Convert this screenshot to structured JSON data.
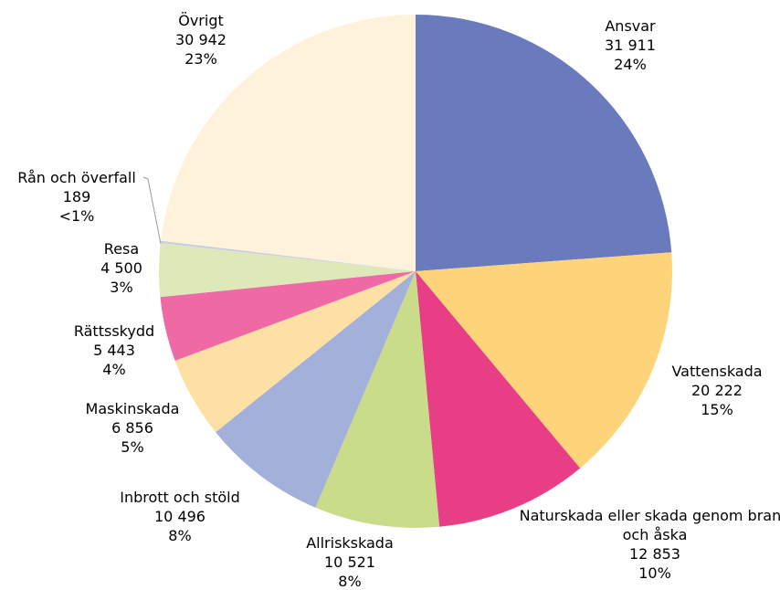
{
  "chart_data": {
    "type": "pie",
    "categories": [
      "Ansvar",
      "Vattenskada",
      "Naturskada eller skada genom brand och åska",
      "Allriskskada",
      "Inbrott och stöld",
      "Maskinskada",
      "Rättsskydd",
      "Resa",
      "Rån och överfall",
      "Övrigt"
    ],
    "values": [
      31911,
      20222,
      12853,
      10521,
      10496,
      6856,
      5443,
      4500,
      189,
      30942
    ],
    "value_labels": [
      "31 911",
      "20 222",
      "12 853",
      "10 521",
      "10 496",
      "6 856",
      "5 443",
      "4 500",
      "189",
      "30 942"
    ],
    "percent_labels": [
      "24%",
      "15%",
      "10%",
      "8%",
      "8%",
      "5%",
      "4%",
      "3%",
      "<1%",
      "23%"
    ],
    "colors": [
      "#6a7bbd",
      "#fdd47a",
      "#e83e86",
      "#c8dc8a",
      "#a3b0d9",
      "#fde0a4",
      "#ef6aa5",
      "#dde9b8",
      "#c7cde8",
      "#fff2da"
    ]
  }
}
